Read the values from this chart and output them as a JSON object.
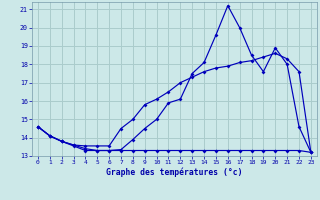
{
  "bg_color": "#cce8e8",
  "grid_color": "#aacccc",
  "line_color": "#0000bb",
  "xlabel": "Graphe des températures (°c)",
  "xlim": [
    -0.5,
    23.5
  ],
  "ylim": [
    13,
    21.4
  ],
  "yticks": [
    13,
    14,
    15,
    16,
    17,
    18,
    19,
    20,
    21
  ],
  "xticks": [
    0,
    1,
    2,
    3,
    4,
    5,
    6,
    7,
    8,
    9,
    10,
    11,
    12,
    13,
    14,
    15,
    16,
    17,
    18,
    19,
    20,
    21,
    22,
    23
  ],
  "series1_x": [
    0,
    1,
    2,
    3,
    4,
    5,
    6,
    7,
    8,
    9,
    10,
    11,
    12,
    13,
    14,
    15,
    16,
    17,
    18,
    19,
    20,
    21,
    22,
    23
  ],
  "series1_y": [
    14.6,
    14.1,
    13.8,
    13.55,
    13.3,
    13.3,
    13.3,
    13.35,
    13.9,
    14.5,
    15.0,
    15.9,
    16.1,
    17.5,
    18.1,
    19.6,
    21.2,
    20.0,
    18.5,
    17.6,
    18.9,
    18.0,
    14.6,
    13.2
  ],
  "series2_x": [
    0,
    1,
    2,
    3,
    4,
    5,
    6,
    7,
    8,
    9,
    10,
    11,
    12,
    13,
    14,
    15,
    16,
    17,
    18,
    19,
    20,
    21,
    22,
    23
  ],
  "series2_y": [
    14.6,
    14.1,
    13.8,
    13.6,
    13.55,
    13.55,
    13.55,
    14.5,
    15.0,
    15.8,
    16.1,
    16.5,
    17.0,
    17.3,
    17.6,
    17.8,
    17.9,
    18.1,
    18.2,
    18.4,
    18.6,
    18.3,
    17.6,
    13.2
  ],
  "series3_x": [
    0,
    1,
    2,
    3,
    4,
    5,
    6,
    7,
    8,
    9,
    10,
    11,
    12,
    13,
    14,
    15,
    16,
    17,
    18,
    19,
    20,
    21,
    22,
    23
  ],
  "series3_y": [
    14.6,
    14.1,
    13.8,
    13.6,
    13.4,
    13.3,
    13.3,
    13.3,
    13.3,
    13.3,
    13.3,
    13.3,
    13.3,
    13.3,
    13.3,
    13.3,
    13.3,
    13.3,
    13.3,
    13.3,
    13.3,
    13.3,
    13.3,
    13.2
  ]
}
